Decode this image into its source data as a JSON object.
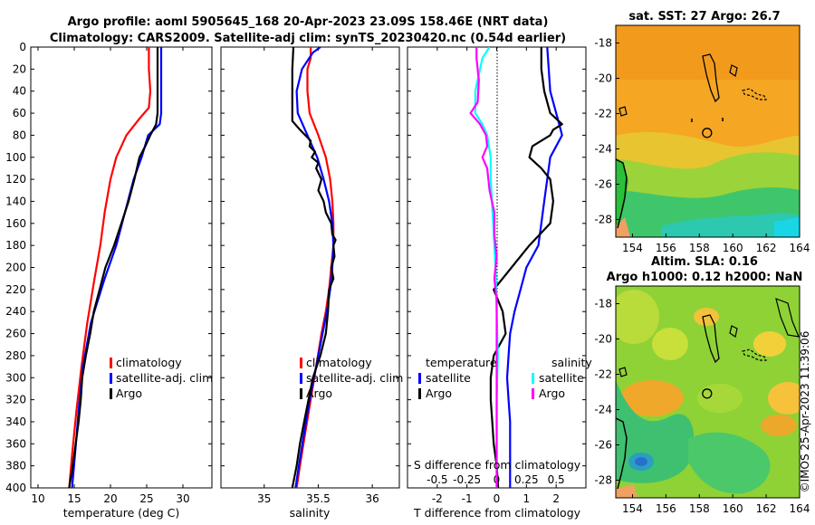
{
  "figure": {
    "title_line1": "Argo profile: aoml 5905645_168 20-Apr-2023 23.09S 158.46E (NRT data)",
    "title_line2": "Climatology: CARS2009. Satellite-adj clim: synTS_20230420.nc (0.54d earlier)",
    "watermark": "©IMOS 25-Apr-2023 11:39:06"
  },
  "colors": {
    "red": "#ff0000",
    "blue": "#0000ff",
    "black": "#000000",
    "cyan": "#00ffff",
    "magenta": "#ff00ff"
  },
  "chart_data": [
    {
      "type": "line",
      "name": "temperature-profile",
      "xlabel": "temperature (deg C)",
      "xlim": [
        9,
        34
      ],
      "ylim": [
        400,
        0
      ],
      "xticks": [
        "10",
        "15",
        "20",
        "25",
        "30"
      ],
      "xtick_values": [
        10,
        15,
        20,
        25,
        30
      ],
      "yticks": [
        "0",
        "20",
        "40",
        "60",
        "80",
        "100",
        "120",
        "140",
        "160",
        "180",
        "200",
        "220",
        "240",
        "260",
        "280",
        "300",
        "320",
        "340",
        "360",
        "380",
        "400"
      ],
      "ytick_values": [
        0,
        20,
        40,
        60,
        80,
        100,
        120,
        140,
        160,
        180,
        200,
        220,
        240,
        260,
        280,
        300,
        320,
        340,
        360,
        380,
        400
      ],
      "legend": [
        "climatology",
        "satellite-adj. clim",
        "Argo"
      ],
      "series": [
        {
          "name": "climatology",
          "color": "red",
          "depth": [
            0,
            20,
            40,
            55,
            65,
            80,
            100,
            120,
            150,
            180,
            210,
            250,
            290,
            330,
            370,
            400
          ],
          "values": [
            25.3,
            25.3,
            25.5,
            25.3,
            24,
            22.2,
            20.8,
            20,
            19.2,
            18.6,
            17.8,
            16.8,
            16,
            15.3,
            14.7,
            14.3
          ]
        },
        {
          "name": "satellite-adj. clim",
          "color": "blue",
          "depth": [
            0,
            40,
            60,
            70,
            80,
            100,
            120,
            150,
            180,
            210,
            250,
            290,
            330,
            370,
            400
          ],
          "values": [
            27,
            27,
            27,
            26.8,
            25.2,
            24.3,
            23.2,
            22,
            20.8,
            19.2,
            17.3,
            16.2,
            15.6,
            15.1,
            14.7
          ]
        },
        {
          "name": "Argo",
          "color": "black",
          "depth": [
            0,
            20,
            40,
            60,
            70,
            80,
            90,
            100,
            120,
            140,
            150,
            160,
            180,
            200,
            220,
            240,
            260,
            280,
            300,
            320,
            340,
            360,
            380,
            400
          ],
          "values": [
            26.5,
            26.5,
            26.5,
            26.5,
            26.3,
            25.5,
            24.8,
            24,
            23.3,
            22.5,
            22,
            21.5,
            20.5,
            19.3,
            18.5,
            17.7,
            17.2,
            16.6,
            16.1,
            15.9,
            15.6,
            15.2,
            14.8,
            14.3
          ]
        }
      ]
    },
    {
      "type": "line",
      "name": "salinity-profile",
      "xlabel": "salinity",
      "xlim": [
        34.6,
        36.25
      ],
      "ylim": [
        400,
        0
      ],
      "xticks": [
        "35",
        "35.5",
        "36"
      ],
      "xtick_values": [
        35,
        35.5,
        36
      ],
      "legend": [
        "climatology",
        "satellite-adj. clim",
        "Argo"
      ],
      "series": [
        {
          "name": "climatology",
          "color": "red",
          "depth": [
            0,
            10,
            20,
            40,
            60,
            80,
            100,
            120,
            140,
            160,
            180,
            200,
            220,
            240,
            260,
            290,
            320,
            350,
            380,
            400
          ],
          "values": [
            35.43,
            35.43,
            35.4,
            35.4,
            35.42,
            35.5,
            35.57,
            35.61,
            35.63,
            35.64,
            35.64,
            35.62,
            35.6,
            35.57,
            35.53,
            35.48,
            35.43,
            35.38,
            35.33,
            35.3
          ]
        },
        {
          "name": "satellite-adj. clim",
          "color": "blue",
          "depth": [
            0,
            5,
            20,
            40,
            60,
            80,
            100,
            120,
            140,
            160,
            180,
            200,
            220,
            240,
            260,
            290,
            320,
            350,
            380,
            400
          ],
          "values": [
            35.52,
            35.45,
            35.35,
            35.3,
            35.31,
            35.4,
            35.49,
            35.55,
            35.6,
            35.63,
            35.64,
            35.63,
            35.61,
            35.58,
            35.54,
            35.48,
            35.42,
            35.37,
            35.32,
            35.29
          ]
        },
        {
          "name": "Argo",
          "color": "black",
          "depth": [
            0,
            20,
            40,
            60,
            67,
            75,
            80,
            85,
            90,
            95,
            100,
            105,
            110,
            120,
            130,
            140,
            150,
            160,
            170,
            175,
            180,
            190,
            200,
            210,
            220,
            240,
            260,
            280,
            300,
            320,
            340,
            360,
            380,
            400
          ],
          "values": [
            35.27,
            35.26,
            35.26,
            35.26,
            35.26,
            35.33,
            35.38,
            35.43,
            35.42,
            35.47,
            35.44,
            35.5,
            35.48,
            35.53,
            35.5,
            35.55,
            35.57,
            35.62,
            35.63,
            35.66,
            35.64,
            35.65,
            35.62,
            35.64,
            35.6,
            35.59,
            35.57,
            35.52,
            35.45,
            35.41,
            35.37,
            35.33,
            35.3,
            35.26
          ]
        }
      ]
    },
    {
      "type": "line",
      "name": "difference-profile",
      "xlabel": "T difference from climatology",
      "xlabel_top": "S difference from climatology",
      "xlim": [
        -3,
        3
      ],
      "ylim": [
        400,
        0
      ],
      "xticks": [
        "-2",
        "-1",
        "0",
        "1",
        "2"
      ],
      "xtick_values": [
        -2,
        -1,
        0,
        1,
        2
      ],
      "xticks_top": [
        "-0.5",
        "-0.25",
        "0",
        "0.25",
        "0.5"
      ],
      "xtick_values_top": [
        -0.5,
        -0.25,
        0,
        0.25,
        0.5
      ],
      "legend_headers": [
        "temperature",
        "salinity"
      ],
      "legend": [
        "satellite",
        "Argo",
        "satellite",
        "Argo"
      ],
      "series": [
        {
          "name": "temperature satellite",
          "color": "blue",
          "depth": [
            0,
            40,
            60,
            70,
            80,
            100,
            120,
            140,
            160,
            180,
            200,
            220,
            240,
            260,
            280,
            300,
            320,
            340,
            360,
            380,
            400
          ],
          "values": [
            1.7,
            1.8,
            2,
            2.1,
            2.2,
            1.8,
            1.7,
            1.6,
            1.5,
            1.4,
            1,
            0.8,
            0.6,
            0.45,
            0.4,
            0.35,
            0.4,
            0.45,
            0.45,
            0.45,
            0.45
          ]
        },
        {
          "name": "temperature Argo",
          "color": "black",
          "depth": [
            0,
            20,
            40,
            60,
            70,
            75,
            80,
            90,
            100,
            110,
            120,
            140,
            160,
            180,
            200,
            220,
            240,
            260,
            280,
            300,
            320,
            340,
            360,
            380,
            400
          ],
          "values": [
            1.5,
            1.5,
            1.6,
            1.8,
            2.2,
            1.9,
            1.8,
            1.2,
            1.1,
            1.5,
            1.8,
            1.9,
            1.8,
            1.1,
            0.5,
            -0.1,
            0.2,
            0.3,
            -0.1,
            -0.2,
            -0.2,
            -0.15,
            -0.1,
            0,
            0.05
          ]
        },
        {
          "name": "salinity satellite",
          "color": "cyan",
          "depth": [
            0,
            10,
            40,
            60,
            70,
            80,
            100,
            120,
            160,
            200,
            240,
            280,
            320,
            360,
            400
          ],
          "values": [
            -0.06,
            -0.12,
            -0.18,
            -0.18,
            -0.12,
            -0.08,
            -0.05,
            -0.05,
            -0.03,
            -0.01,
            0,
            0.01,
            0,
            0,
            0
          ]
        },
        {
          "name": "salinity Argo",
          "color": "magenta",
          "depth": [
            0,
            10,
            30,
            50,
            60,
            70,
            80,
            90,
            100,
            110,
            130,
            150,
            170,
            190,
            210,
            230,
            260,
            290,
            320,
            360,
            400
          ],
          "values": [
            -0.17,
            -0.17,
            -0.15,
            -0.16,
            -0.22,
            -0.14,
            -0.09,
            -0.08,
            -0.12,
            -0.08,
            -0.06,
            -0.02,
            -0.02,
            0,
            -0.02,
            0,
            0,
            0,
            0,
            0,
            0
          ]
        }
      ]
    },
    {
      "type": "heatmap",
      "name": "sst-map",
      "title": "sat. SST: 27 Argo: 26.7",
      "xlim": [
        153,
        164
      ],
      "ylim": [
        -29,
        -17
      ],
      "xticks": [
        "154",
        "156",
        "158",
        "160",
        "162",
        "164"
      ],
      "xtick_values": [
        154,
        156,
        158,
        160,
        162,
        164
      ],
      "yticks": [
        "-18",
        "-20",
        "-22",
        "-24",
        "-26",
        "-28"
      ],
      "ytick_values": [
        -18,
        -20,
        -22,
        -24,
        -26,
        -28
      ],
      "argo_location": [
        158.46,
        -23.09
      ]
    },
    {
      "type": "heatmap",
      "name": "sla-map",
      "title_line1": "Altim. SLA: 0.16",
      "title_line2": "Argo h1000: 0.12 h2000: NaN",
      "xlim": [
        153,
        164
      ],
      "ylim": [
        -29,
        -17
      ],
      "xticks": [
        "154",
        "156",
        "158",
        "160",
        "162",
        "164"
      ],
      "xtick_values": [
        154,
        156,
        158,
        160,
        162,
        164
      ],
      "yticks": [
        "-18",
        "-20",
        "-22",
        "-24",
        "-26",
        "-28"
      ],
      "ytick_values": [
        -18,
        -20,
        -22,
        -24,
        -26,
        -28
      ],
      "argo_location": [
        158.46,
        -23.09
      ]
    }
  ]
}
